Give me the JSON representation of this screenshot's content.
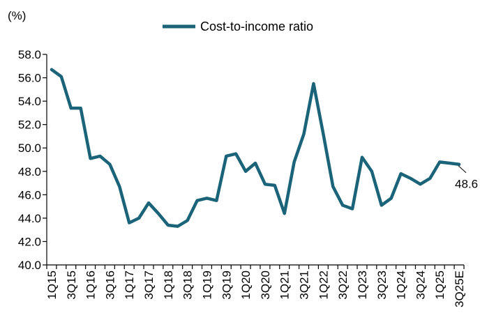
{
  "chart_data": {
    "type": "line",
    "title": "",
    "ylabel": "(%)",
    "xlabel": "",
    "ylim": [
      40,
      58
    ],
    "y_ticks": [
      40,
      42,
      44,
      46,
      48,
      50,
      52,
      54,
      56,
      58
    ],
    "y_tick_labels": [
      "40.0",
      "42.0",
      "44.0",
      "46.0",
      "48.0",
      "50.0",
      "52.0",
      "54.0",
      "56.0",
      "58.0"
    ],
    "x": [
      "1Q15",
      "2Q15",
      "3Q15",
      "4Q15",
      "1Q16",
      "2Q16",
      "3Q16",
      "4Q16",
      "1Q17",
      "2Q17",
      "3Q17",
      "4Q17",
      "1Q18",
      "2Q18",
      "3Q18",
      "4Q18",
      "1Q19",
      "2Q19",
      "3Q19",
      "4Q19",
      "1Q20",
      "2Q20",
      "3Q20",
      "4Q20",
      "1Q21",
      "2Q21",
      "3Q21",
      "4Q21",
      "1Q22",
      "2Q22",
      "3Q22",
      "4Q22",
      "1Q23",
      "2Q23",
      "3Q23",
      "4Q23",
      "1Q24",
      "2Q24",
      "3Q24",
      "4Q24",
      "1Q25",
      "2Q25",
      "3Q25E"
    ],
    "x_tick_labels": [
      "1Q15",
      "3Q15",
      "1Q16",
      "3Q16",
      "1Q17",
      "3Q17",
      "1Q18",
      "3Q18",
      "1Q19",
      "3Q19",
      "1Q20",
      "3Q20",
      "1Q21",
      "3Q21",
      "1Q22",
      "3Q22",
      "1Q23",
      "3Q23",
      "1Q24",
      "3Q24",
      "1Q25",
      "3Q25E"
    ],
    "series": [
      {
        "name": "Cost-to-income ratio",
        "color": "#1b6378",
        "values": [
          56.7,
          56.1,
          53.4,
          53.4,
          49.1,
          49.3,
          48.6,
          46.7,
          43.6,
          44.0,
          45.3,
          44.4,
          43.4,
          43.3,
          43.8,
          45.5,
          45.7,
          45.5,
          49.3,
          49.5,
          48.0,
          48.7,
          46.9,
          46.8,
          44.4,
          48.8,
          51.2,
          55.5,
          51.2,
          46.7,
          45.1,
          44.8,
          49.2,
          48.0,
          45.1,
          45.7,
          47.8,
          47.4,
          46.9,
          47.4,
          48.8,
          48.7,
          48.6
        ]
      }
    ],
    "annotations": [
      {
        "text": "48.6",
        "category": "3Q25E",
        "value": 48.6
      }
    ],
    "legend_position": "top-center",
    "grid": false
  }
}
